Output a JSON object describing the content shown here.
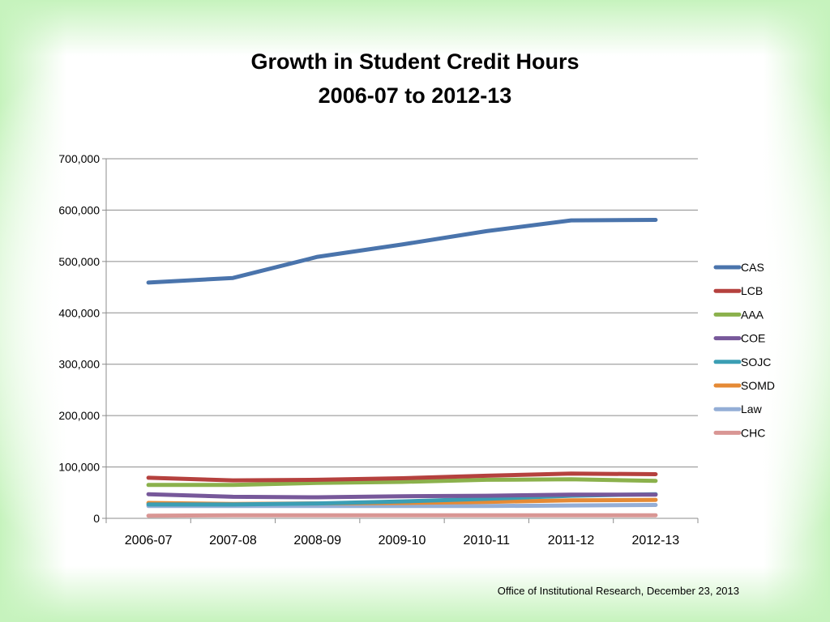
{
  "footer": "Office of Institutional Research, December 23, 2013",
  "chart_data": {
    "type": "line",
    "title": [
      "Growth in Student Credit Hours",
      "2006-07 to 2012-13"
    ],
    "xlabel": "",
    "ylabel": "",
    "categories": [
      "2006-07",
      "2007-08",
      "2008-09",
      "2009-10",
      "2010-11",
      "2011-12",
      "2012-13"
    ],
    "ylim": [
      0,
      700000
    ],
    "yticks": [
      0,
      100000,
      200000,
      300000,
      400000,
      500000,
      600000,
      700000
    ],
    "ytick_labels": [
      "0",
      "100,000",
      "200,000",
      "300,000",
      "400,000",
      "500,000",
      "600,000",
      "700,000"
    ],
    "grid": true,
    "legend_position": "right",
    "series": [
      {
        "name": "CAS",
        "color": "#4a74ac",
        "values": [
          459000,
          468000,
          509000,
          533000,
          559000,
          580000,
          581000
        ]
      },
      {
        "name": "LCB",
        "color": "#b5413e",
        "values": [
          79000,
          74000,
          75000,
          78000,
          83000,
          87000,
          86000
        ]
      },
      {
        "name": "AAA",
        "color": "#8bb14c",
        "values": [
          65000,
          65000,
          69000,
          71000,
          75000,
          76000,
          73000
        ]
      },
      {
        "name": "COE",
        "color": "#77589a",
        "values": [
          47000,
          42000,
          41000,
          43000,
          44000,
          46000,
          46000
        ]
      },
      {
        "name": "SOJC",
        "color": "#3b9eb4",
        "values": [
          27000,
          27000,
          29000,
          33000,
          38000,
          44000,
          47000
        ]
      },
      {
        "name": "SOMD",
        "color": "#e58a35",
        "values": [
          30000,
          28000,
          29000,
          30000,
          32000,
          35000,
          36000
        ]
      },
      {
        "name": "Law",
        "color": "#94aed6",
        "values": [
          24000,
          24000,
          24000,
          24000,
          24000,
          25000,
          26000
        ]
      },
      {
        "name": "CHC",
        "color": "#d99694",
        "values": [
          5000,
          6000,
          6000,
          6000,
          6000,
          6000,
          6000
        ]
      }
    ]
  }
}
